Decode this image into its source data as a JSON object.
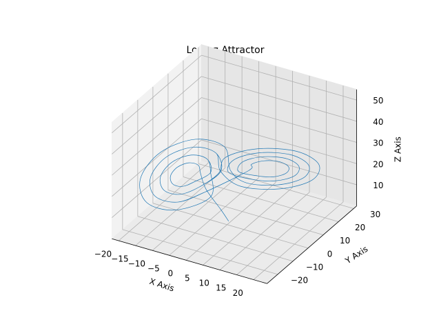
{
  "chart_data": {
    "type": "line3d",
    "title": "Lorenz Attractor",
    "xlabel": "X Axis",
    "ylabel": "Y Axis",
    "zlabel": "Z Axis",
    "color": "#1f77b4",
    "grid": true,
    "elev": 30,
    "azim": -60,
    "xlim": [
      -22,
      24
    ],
    "ylim": [
      -27,
      32
    ],
    "zlim": [
      0,
      55
    ],
    "xticks": [
      {
        "value": -20,
        "label": "−20"
      },
      {
        "value": -15,
        "label": "−15"
      },
      {
        "value": -10,
        "label": "−10"
      },
      {
        "value": -5,
        "label": "−5"
      },
      0,
      5,
      10,
      15,
      20
    ],
    "yticks": [
      {
        "value": -20,
        "label": "−20"
      },
      {
        "value": -10,
        "label": "−10"
      },
      0,
      10,
      20,
      30
    ],
    "zticks": [
      10,
      20,
      30,
      40,
      50
    ],
    "x": [
      0,
      -1,
      -4,
      -5.5,
      -6.4,
      -8.5,
      -10.6,
      -11.5,
      -10.6,
      -8.5,
      -6.4,
      -3.5,
      -5,
      -8.5,
      -12,
      -13.5,
      -12,
      -8.5,
      -5,
      -1.5,
      -3.5,
      -8.5,
      -13.5,
      -15.5,
      -13.5,
      -8.5,
      -3.5,
      4.5,
      5.7,
      8.5,
      11.3,
      12.5,
      11.3,
      8.5,
      5.7,
      2.5,
      4.2,
      8.5,
      12.8,
      14.5,
      12.8,
      8.5,
      4.2,
      0.5,
      2.8,
      8.5,
      14.2,
      16.5,
      14.2,
      8.5,
      2.8,
      0.5,
      -2.1,
      -8.5,
      -14.9,
      -17.5,
      -14.9,
      -8.5,
      -2.1,
      -3.5,
      -5,
      -8.5,
      -12,
      -13.5,
      -12,
      -8.5,
      -5,
      -1.5,
      1.4,
      8.5,
      15.6,
      18.5,
      15.6,
      8.5,
      1.4,
      -1.5,
      -3.5,
      -8.5,
      -13.5,
      -15.5,
      -13.5,
      -8.5,
      -3.5
    ],
    "y": [
      1,
      -2,
      -5,
      -5.3,
      -4.7,
      -6.3,
      -9.3,
      -11.7,
      -12.3,
      -10.7,
      -7.8,
      -3.1,
      -2.1,
      -4.9,
      -9.8,
      -13.9,
      -14.9,
      -12.2,
      -7.3,
      -0.9,
      0.4,
      -3.4,
      -10.3,
      -16.1,
      -17.4,
      -13.6,
      -6.8,
      4.2,
      3.4,
      5.6,
      9.5,
      12.8,
      13.6,
      11.4,
      7.5,
      2,
      0.9,
      4.1,
      10,
      15,
      16.1,
      12.9,
      7,
      -0.1,
      -1.7,
      2.7,
      10.5,
      17.1,
      18.7,
      14.3,
      6.5,
      1.2,
      2.9,
      -1.9,
      -10.8,
      -18.2,
      -19.9,
      -15.1,
      -6.3,
      -3.1,
      -2.1,
      -4.9,
      -9.8,
      -13.9,
      -14.9,
      -12.2,
      -7.3,
      -2.3,
      -4.2,
      1.2,
      11,
      19.3,
      21.2,
      15.8,
      6,
      -0.9,
      0.4,
      -3.4,
      -10.3,
      -16.1,
      -17.4,
      -13.6,
      -6.8
    ],
    "z": [
      1,
      8,
      18,
      25,
      28,
      29.2,
      28,
      25,
      22,
      20.8,
      22,
      25,
      30,
      32,
      30,
      25,
      20,
      18,
      20,
      25,
      32,
      34.8,
      32,
      25,
      18,
      15.2,
      18,
      25,
      29,
      30.6,
      29,
      25,
      21,
      19.4,
      21,
      25,
      31,
      33.4,
      31,
      25,
      19,
      16.6,
      19,
      25,
      33,
      36.2,
      33,
      25,
      17,
      13.8,
      17,
      25,
      34,
      37.6,
      34,
      25,
      16,
      12.4,
      16,
      25,
      30,
      32,
      30,
      25,
      20,
      18,
      20,
      25,
      35,
      39,
      35,
      25,
      15,
      11,
      15,
      25,
      32,
      34.8,
      32,
      25,
      18,
      15.2,
      18
    ]
  }
}
